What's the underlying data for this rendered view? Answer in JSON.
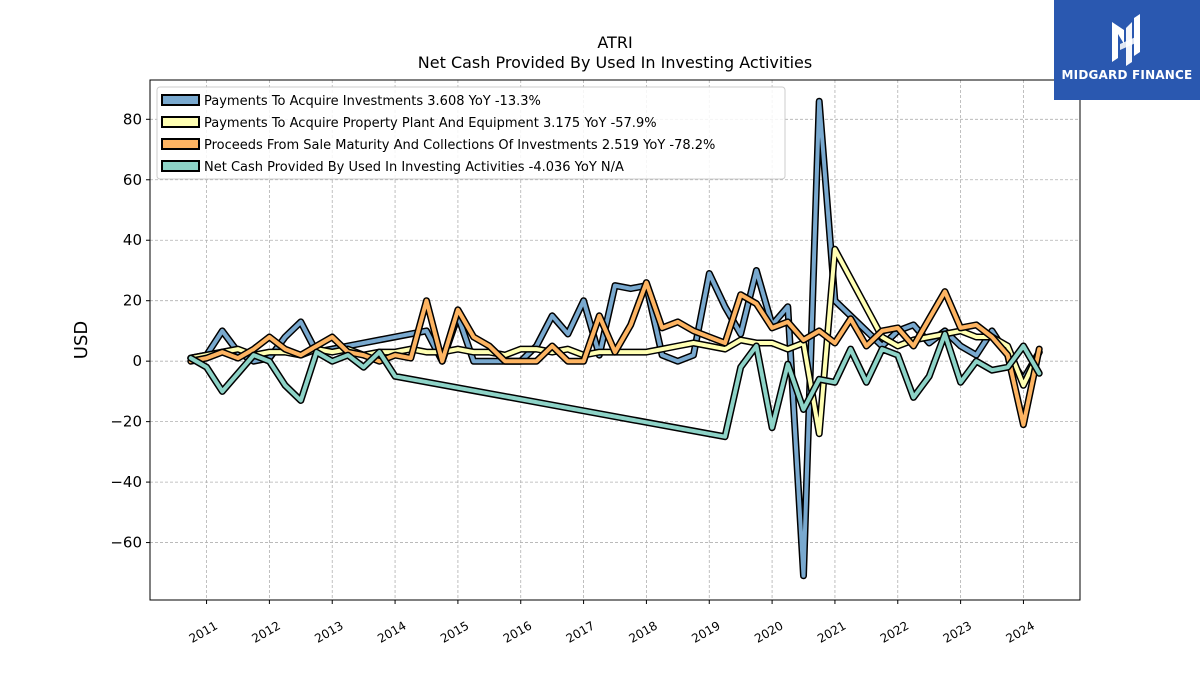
{
  "logo": {
    "text": "MIDGARD FINANCE",
    "bg_color": "#2a58b0"
  },
  "chart_data": {
    "type": "line",
    "title": "ATRI",
    "subtitle": "Net Cash Provided By Used In Investing Activities",
    "xlabel": "",
    "ylabel": "USD",
    "ylim": [
      -79,
      93
    ],
    "xlim": [
      2010.1,
      2024.9
    ],
    "grid": true,
    "legend_position": "top-left",
    "x_ticks": [
      "2011",
      "2012",
      "2013",
      "2014",
      "2015",
      "2016",
      "2017",
      "2018",
      "2019",
      "2020",
      "2021",
      "2022",
      "2023",
      "2024"
    ],
    "y_ticks": [
      80,
      60,
      40,
      20,
      0,
      -20,
      -40,
      -60
    ],
    "series": [
      {
        "name": "Payments To Acquire Investments",
        "legend_label": "Payments To Acquire Investments  3.608 YoY -13.3%",
        "color": "#79a9cf",
        "x": [
          2010.75,
          2011.0,
          2011.25,
          2011.5,
          2011.75,
          2012.0,
          2012.25,
          2012.5,
          2012.75,
          2013.0,
          2013.25,
          2014.5,
          2014.75,
          2015.0,
          2015.25,
          2015.5,
          2015.75,
          2016.0,
          2016.25,
          2016.5,
          2016.75,
          2017.0,
          2017.25,
          2017.5,
          2017.75,
          2018.0,
          2018.25,
          2018.5,
          2018.75,
          2019.0,
          2019.25,
          2019.5,
          2019.75,
          2020.0,
          2020.25,
          2020.5,
          2020.75,
          2021.0,
          2021.75,
          2022.0,
          2022.25,
          2022.5,
          2022.75,
          2023.0,
          2023.25,
          2023.5,
          2023.75,
          2024.0,
          2024.25
        ],
        "values": [
          1,
          2,
          10,
          3,
          0,
          1,
          8,
          13,
          3,
          4,
          5,
          10,
          0,
          15,
          0,
          0,
          0,
          0,
          5,
          15,
          9,
          20,
          2,
          25,
          24,
          25,
          2,
          0,
          2,
          29,
          18,
          9,
          30,
          12,
          18,
          -71,
          86,
          20,
          5,
          10,
          12,
          6,
          10,
          5,
          2,
          10,
          2,
          -6,
          3
        ]
      },
      {
        "name": "Payments To Acquire Property Plant And Equipment",
        "legend_label": "Payments To Acquire Property Plant And Equipment  3.175 YoY -57.9%",
        "color": "#ffffb3",
        "x": [
          2010.75,
          2011.0,
          2011.25,
          2011.5,
          2011.75,
          2012.0,
          2012.25,
          2012.5,
          2012.75,
          2013.0,
          2013.25,
          2013.5,
          2013.75,
          2014.0,
          2014.25,
          2014.5,
          2014.75,
          2015.0,
          2015.25,
          2015.5,
          2015.75,
          2016.0,
          2016.25,
          2016.5,
          2016.75,
          2017.0,
          2017.25,
          2017.5,
          2017.75,
          2018.0,
          2018.25,
          2018.5,
          2018.75,
          2019.0,
          2019.25,
          2019.5,
          2019.75,
          2020.0,
          2020.25,
          2020.5,
          2020.75,
          2021.0,
          2021.75,
          2022.0,
          2022.25,
          2022.5,
          2022.75,
          2023.0,
          2023.25,
          2023.5,
          2023.75,
          2024.0,
          2024.25
        ],
        "values": [
          1,
          2,
          3,
          4,
          2,
          3,
          3,
          2,
          4,
          3,
          4,
          2,
          3,
          3,
          4,
          3,
          3,
          4,
          3,
          3,
          2,
          4,
          4,
          3,
          4,
          2,
          3,
          3,
          3,
          3,
          4,
          5,
          6,
          5,
          4,
          7,
          6,
          6,
          4,
          6,
          -24,
          37,
          8,
          5,
          7,
          8,
          9,
          10,
          8,
          8,
          5,
          -8,
          3
        ]
      },
      {
        "name": "Proceeds From Sale Maturity And Collections Of Investments",
        "legend_label": "Proceeds From Sale Maturity And Collections Of Investments  2.519 YoY -78.2%",
        "color": "#fdb462",
        "x": [
          2010.75,
          2011.0,
          2011.25,
          2011.5,
          2011.75,
          2012.0,
          2012.25,
          2012.5,
          2012.75,
          2013.0,
          2013.25,
          2013.5,
          2013.75,
          2014.0,
          2014.25,
          2014.5,
          2014.75,
          2015.0,
          2015.25,
          2015.5,
          2015.75,
          2016.0,
          2016.25,
          2016.5,
          2016.75,
          2017.0,
          2017.25,
          2017.5,
          2017.75,
          2018.0,
          2018.25,
          2018.5,
          2018.75,
          2019.0,
          2019.25,
          2019.5,
          2019.75,
          2020.0,
          2020.25,
          2020.5,
          2020.75,
          2021.0,
          2021.25,
          2021.5,
          2021.75,
          2022.0,
          2022.25,
          2022.5,
          2022.75,
          2023.0,
          2023.25,
          2023.5,
          2023.75,
          2024.0,
          2024.25
        ],
        "values": [
          0,
          1,
          3,
          1,
          4,
          8,
          4,
          2,
          5,
          8,
          3,
          2,
          0,
          2,
          1,
          20,
          0,
          17,
          8,
          5,
          0,
          0,
          0,
          5,
          0,
          0,
          15,
          3,
          12,
          26,
          11,
          13,
          10,
          8,
          6,
          22,
          19,
          11,
          13,
          7,
          10,
          6,
          14,
          5,
          10,
          11,
          5,
          14,
          23,
          11,
          12,
          8,
          2,
          -21,
          4
        ]
      },
      {
        "name": "Net Cash Provided By Used In Investing Activities",
        "legend_label": "Net Cash Provided By Used In Investing Activities  -4.036 YoY N/A",
        "color": "#8dd3c7",
        "x": [
          2010.75,
          2011.0,
          2011.25,
          2011.5,
          2011.75,
          2012.0,
          2012.25,
          2012.5,
          2012.75,
          2013.0,
          2013.25,
          2013.5,
          2013.75,
          2014.0,
          2019.25,
          2019.5,
          2019.75,
          2020.0,
          2020.25,
          2020.5,
          2020.75,
          2021.0,
          2021.25,
          2021.5,
          2021.75,
          2022.0,
          2022.25,
          2022.5,
          2022.75,
          2023.0,
          2023.25,
          2023.5,
          2023.75,
          2024.0,
          2024.25
        ],
        "values": [
          1,
          -2,
          -10,
          -4,
          2,
          0,
          -8,
          -13,
          3,
          0,
          2,
          -2,
          3,
          -5,
          -25,
          -2,
          5,
          -22,
          -1,
          -16,
          -6,
          -7,
          4,
          -7,
          4,
          2,
          -12,
          -5,
          9,
          -7,
          0,
          -3,
          -2,
          5,
          -4
        ]
      }
    ]
  }
}
